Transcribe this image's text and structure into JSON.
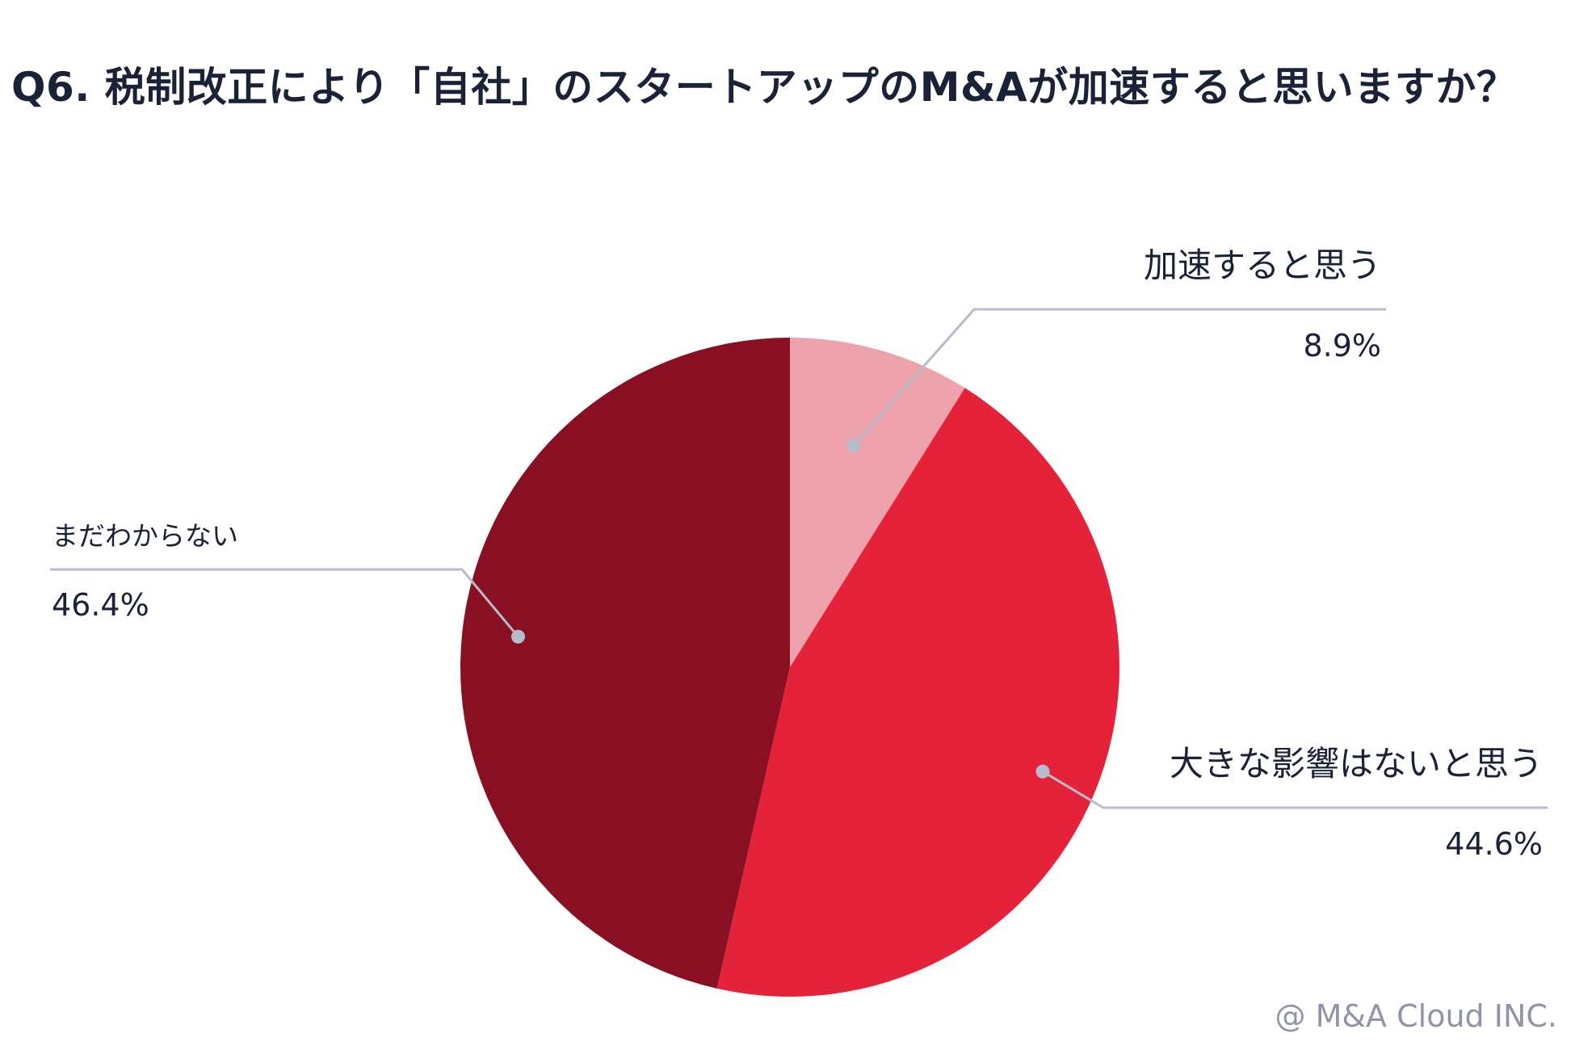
{
  "title": "Q6. 税制改正により「自社」のスタートアップのM&Aが加速すると思いますか？",
  "credit": "@ M&A Cloud INC.",
  "chart_data": {
    "type": "pie",
    "start_angle_deg": 0,
    "direction": "clockwise",
    "slices": [
      {
        "label": "加速すると思う",
        "value": 8.9,
        "display": "8.9%",
        "color": "#eea2ab"
      },
      {
        "label": "大きな影響はないと思う",
        "value": 44.6,
        "display": "44.6%",
        "color": "#e4233b"
      },
      {
        "label": "まだわからない",
        "value": 46.4,
        "display": "46.4%",
        "color": "#891022"
      }
    ],
    "leader_color": "#b6bccb"
  }
}
